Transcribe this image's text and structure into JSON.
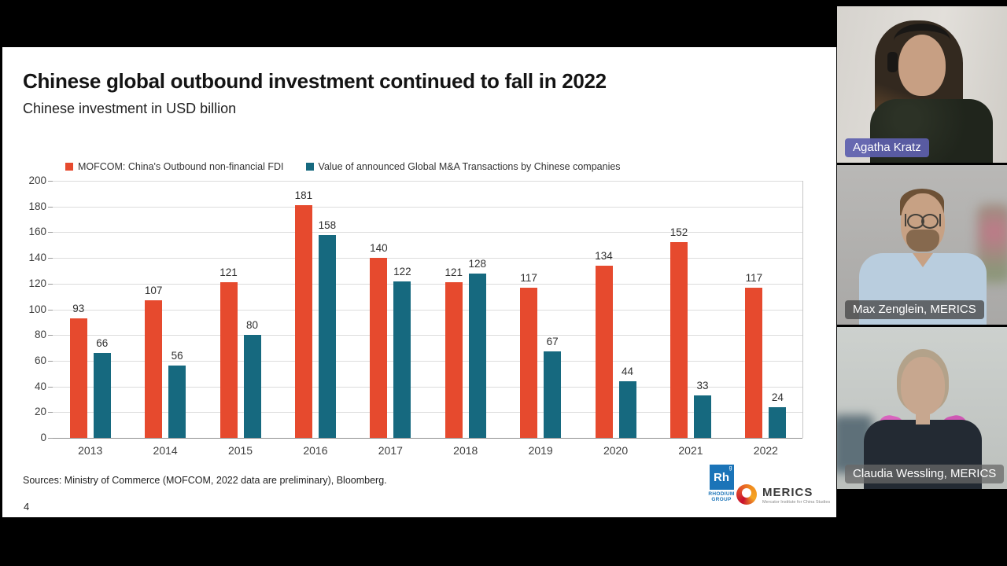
{
  "slide": {
    "title": "Chinese global outbound investment continued to fall in 2022",
    "subtitle": "Chinese investment in USD billion",
    "sources": "Sources: Ministry of Commerce (MOFCOM, 2022 data are preliminary), Bloomberg.",
    "page_number": "4",
    "logos": {
      "rhodium": {
        "element": "Rh",
        "superscript": "g",
        "line1": "RHODIUM",
        "line2": "GROUP",
        "color": "#1b74b8"
      },
      "merics": {
        "name": "MERICS",
        "tagline": "Mercator Institute for China Studies"
      }
    }
  },
  "chart_data": {
    "type": "bar",
    "title": "Chinese investment in USD billion",
    "categories": [
      "2013",
      "2014",
      "2015",
      "2016",
      "2017",
      "2018",
      "2019",
      "2020",
      "2021",
      "2022"
    ],
    "series": [
      {
        "name": "MOFCOM: China's Outbound non-financial FDI",
        "color": "#e64a2e",
        "values": [
          93,
          107,
          121,
          181,
          140,
          121,
          117,
          134,
          152,
          117
        ]
      },
      {
        "name": "Value of announced Global M&A Transactions by Chinese companies",
        "color": "#16697f",
        "values": [
          66,
          56,
          80,
          158,
          122,
          128,
          67,
          44,
          33,
          24
        ]
      }
    ],
    "xlabel": "",
    "ylabel": "",
    "ylim": [
      0,
      200
    ],
    "yticks": [
      0,
      20,
      40,
      60,
      80,
      100,
      120,
      140,
      160,
      180,
      200
    ],
    "grid": true,
    "legend_position": "top"
  },
  "meeting": {
    "participants": [
      {
        "name": "Agatha Kratz",
        "label_color": "rgba(93,95,174,0.92)"
      },
      {
        "name": "Max Zenglein, MERICS",
        "label_color": "rgba(72,72,72,0.78)"
      },
      {
        "name": "Claudia Wessling, MERICS",
        "label_color": "rgba(104,104,104,0.75)"
      }
    ]
  }
}
